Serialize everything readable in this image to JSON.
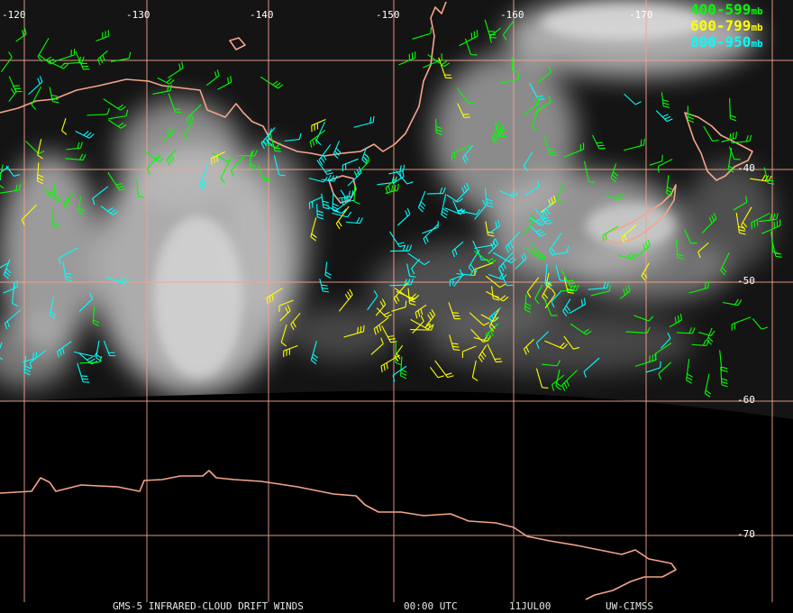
{
  "map": {
    "longitude_labels": [
      "-120",
      "-130",
      "-140",
      "-150",
      "-160",
      "-170"
    ],
    "latitude_labels": [
      "-40",
      "-50",
      "-60",
      "-70"
    ],
    "legend": [
      {
        "range": "400-599",
        "unit": "mb",
        "color": "#00ff00"
      },
      {
        "range": "600-799",
        "unit": "mb",
        "color": "#ffff00"
      },
      {
        "range": "800-950",
        "unit": "mb",
        "color": "#00ffff"
      }
    ],
    "footer": [
      "GMS-5 INFRARED-CLOUD DRIFT WINDS",
      "00:00 UTC",
      "11JUL00",
      "UW-CIMSS"
    ]
  }
}
